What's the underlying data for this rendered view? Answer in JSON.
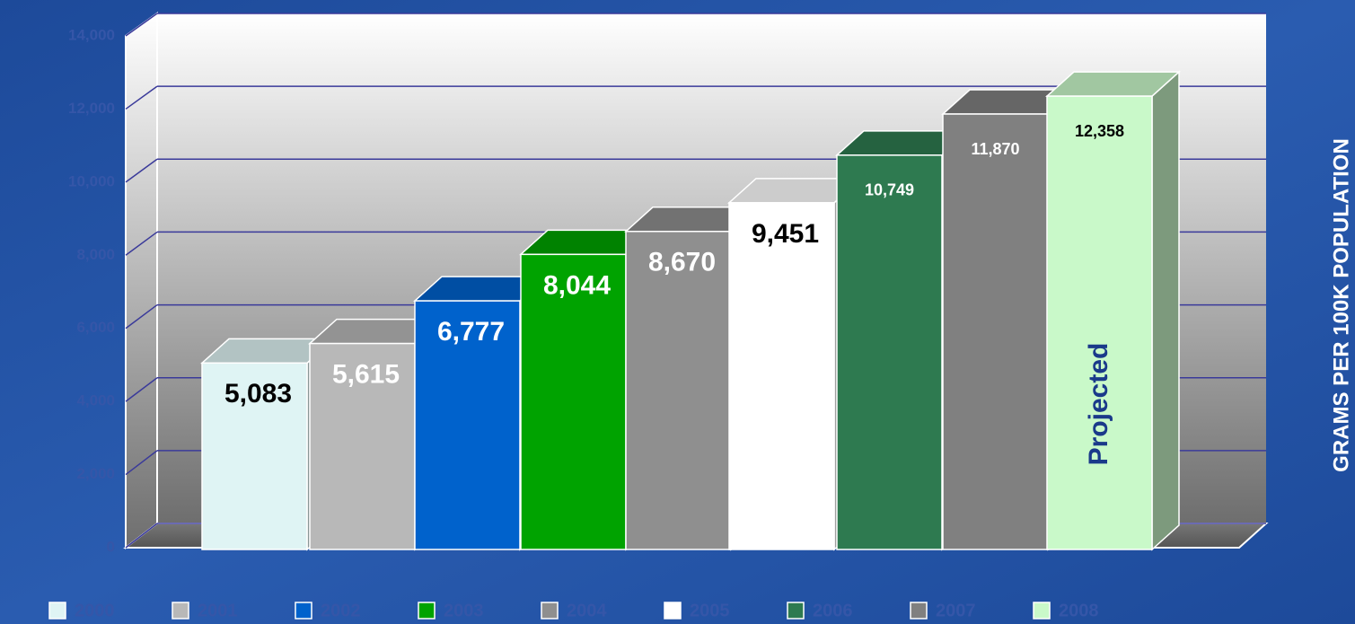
{
  "chart_data": {
    "type": "bar3d",
    "y_axis_label": "GRAMS PER 100K POPULATION",
    "annotation": "Projected",
    "categories": [
      "2000",
      "2001",
      "2002",
      "2003",
      "2004",
      "2005",
      "2006",
      "2007",
      "2008"
    ],
    "values": [
      5083,
      5615,
      6777,
      8044,
      8670,
      9451,
      10749,
      11870,
      12358
    ],
    "value_labels": [
      "5,083",
      "5,615",
      "6,777",
      "8,044",
      "8,670",
      "9,451",
      "10,749",
      "11,870",
      "12,358"
    ],
    "colors": [
      "#dff4f4",
      "#b8b8b8",
      "#0062cc",
      "#00a300",
      "#8f8f8f",
      "#ffffff",
      "#2e7a50",
      "#808080",
      "#c9f9c9"
    ],
    "label_colors": [
      "#000000",
      "#ffffff",
      "#ffffff",
      "#ffffff",
      "#ffffff",
      "#000000",
      "#ffffff",
      "#ffffff",
      "#000000"
    ],
    "ylim": [
      0,
      14000
    ],
    "yticks": [
      0,
      {
        "value": 2000,
        "label": "2,000"
      },
      {
        "value": 4000,
        "label": "4,000"
      },
      {
        "value": 6000,
        "label": "6,000"
      },
      {
        "value": 8000,
        "label": "8,000"
      },
      {
        "value": 10000,
        "label": "10,000"
      },
      {
        "value": 12000,
        "label": "12,000"
      },
      {
        "value": 14000,
        "label": "14,000"
      }
    ],
    "grid": true
  }
}
